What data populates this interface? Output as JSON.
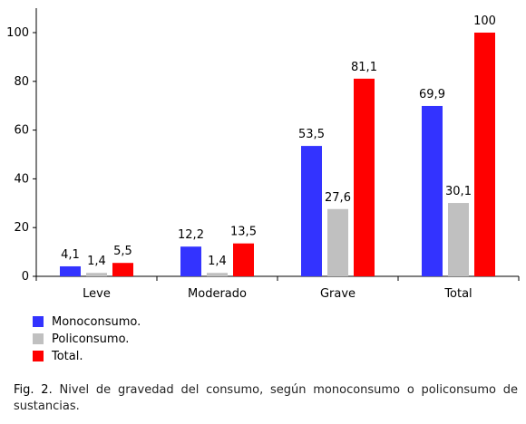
{
  "chart_data": {
    "type": "bar",
    "categories": [
      "Leve",
      "Moderado",
      "Grave",
      "Total"
    ],
    "series": [
      {
        "name": "Monoconsumo.",
        "color": "#3333ff",
        "values": [
          4.1,
          12.2,
          53.5,
          69.9
        ],
        "labels": [
          "4,1",
          "12,2",
          "53,5",
          "69,9"
        ]
      },
      {
        "name": "Policonsumo.",
        "color": "#c0c0c0",
        "values": [
          1.4,
          1.4,
          27.6,
          30.1
        ],
        "labels": [
          "1,4",
          "1,4",
          "27,6",
          "30,1"
        ]
      },
      {
        "name": "Total.",
        "color": "#ff0000",
        "values": [
          5.5,
          13.5,
          81.1,
          100
        ],
        "labels": [
          "5,5",
          "13,5",
          "81,1",
          "100"
        ]
      }
    ],
    "ylim": [
      0,
      100
    ],
    "yticks": [
      0,
      20,
      40,
      60,
      80,
      100
    ],
    "legend_position": "bottom-left",
    "grid": false
  },
  "caption": {
    "label": "Fig. 2.",
    "text": "Nivel de gravedad del consumo, según monoconsumo o policonsumo de sustancias."
  }
}
